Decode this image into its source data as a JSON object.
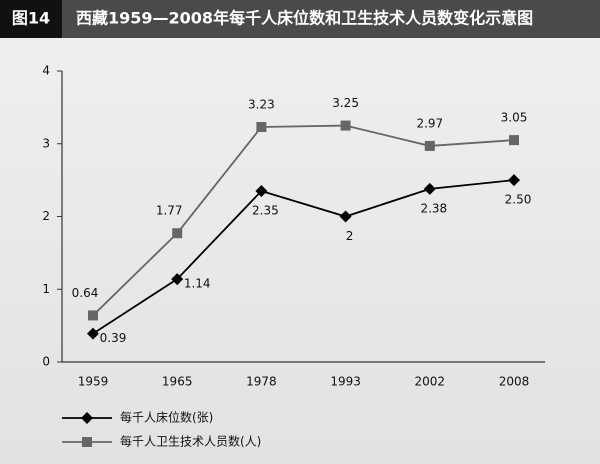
{
  "chart_data": {
    "type": "line",
    "figure_label": "图14",
    "title": "西藏1959—2008年每千人床位数和卫生技术人员数变化示意图",
    "categories": [
      "1959",
      "1965",
      "1978",
      "1993",
      "2002",
      "2008"
    ],
    "series": [
      {
        "name": "每千人床位数(张)",
        "color": "#000000",
        "marker": "diamond",
        "values": [
          0.39,
          1.14,
          2.35,
          2,
          2.38,
          2.5
        ],
        "value_labels": [
          "0.39",
          "1.14",
          "2.35",
          "2",
          "2.38",
          "2.50"
        ]
      },
      {
        "name": "每千人卫生技术人员数(人)",
        "color": "#666666",
        "marker": "square",
        "values": [
          0.64,
          1.77,
          3.23,
          3.25,
          2.97,
          3.05
        ],
        "value_labels": [
          "0.64",
          "1.77",
          "3.23",
          "3.25",
          "2.97",
          "3.05"
        ]
      }
    ],
    "ylim": [
      0,
      4
    ],
    "yticks": [
      0,
      1,
      2,
      3,
      4
    ],
    "grid": false,
    "legend": "bottom-left"
  }
}
